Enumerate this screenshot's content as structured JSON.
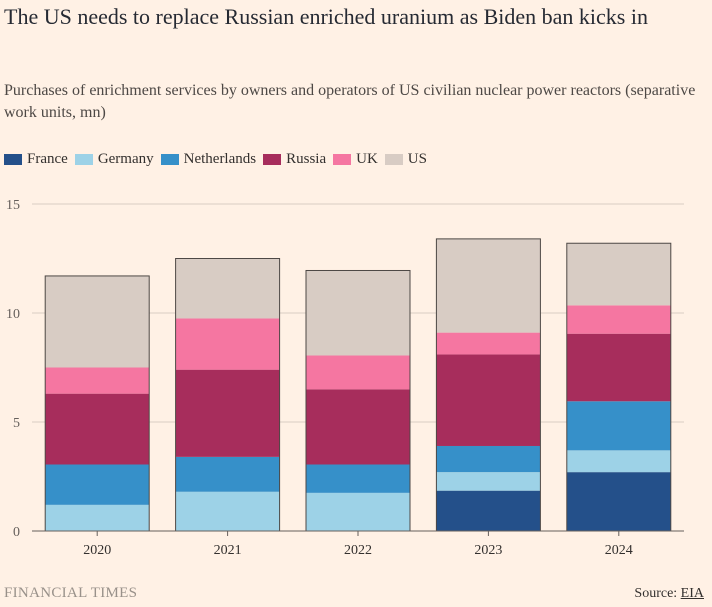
{
  "header": {
    "title": "The US needs to replace Russian enriched uranium as Biden ban kicks in",
    "subtitle": "Purchases of enrichment services by owners and operators of US civilian nuclear power reactors (separative work units, mn)"
  },
  "footer": {
    "brand": "FINANCIAL TIMES",
    "source_label": "Source: ",
    "source_name": "EIA"
  },
  "chart_data": {
    "type": "bar",
    "stacked": true,
    "categories": [
      "2020",
      "2021",
      "2022",
      "2023",
      "2024"
    ],
    "series": [
      {
        "name": "France",
        "color": "#24508a",
        "values": [
          0,
          0,
          0,
          1.85,
          2.7
        ]
      },
      {
        "name": "Germany",
        "color": "#9dd2e7",
        "values": [
          1.2,
          1.8,
          1.75,
          0.85,
          1.0
        ]
      },
      {
        "name": "Netherlands",
        "color": "#3690c9",
        "values": [
          1.85,
          1.6,
          1.3,
          1.2,
          2.25
        ]
      },
      {
        "name": "Russia",
        "color": "#a72d5c",
        "values": [
          3.25,
          4.0,
          3.45,
          4.2,
          3.1
        ]
      },
      {
        "name": "UK",
        "color": "#f576a1",
        "values": [
          1.2,
          2.35,
          1.55,
          1.0,
          1.3
        ]
      },
      {
        "name": "US",
        "color": "#d8ccc4",
        "values": [
          4.2,
          2.75,
          3.9,
          4.3,
          2.85
        ]
      }
    ],
    "ylim": [
      0,
      15
    ],
    "yticks": [
      0,
      5,
      10,
      15
    ],
    "grid": true,
    "legend": "top-left"
  }
}
